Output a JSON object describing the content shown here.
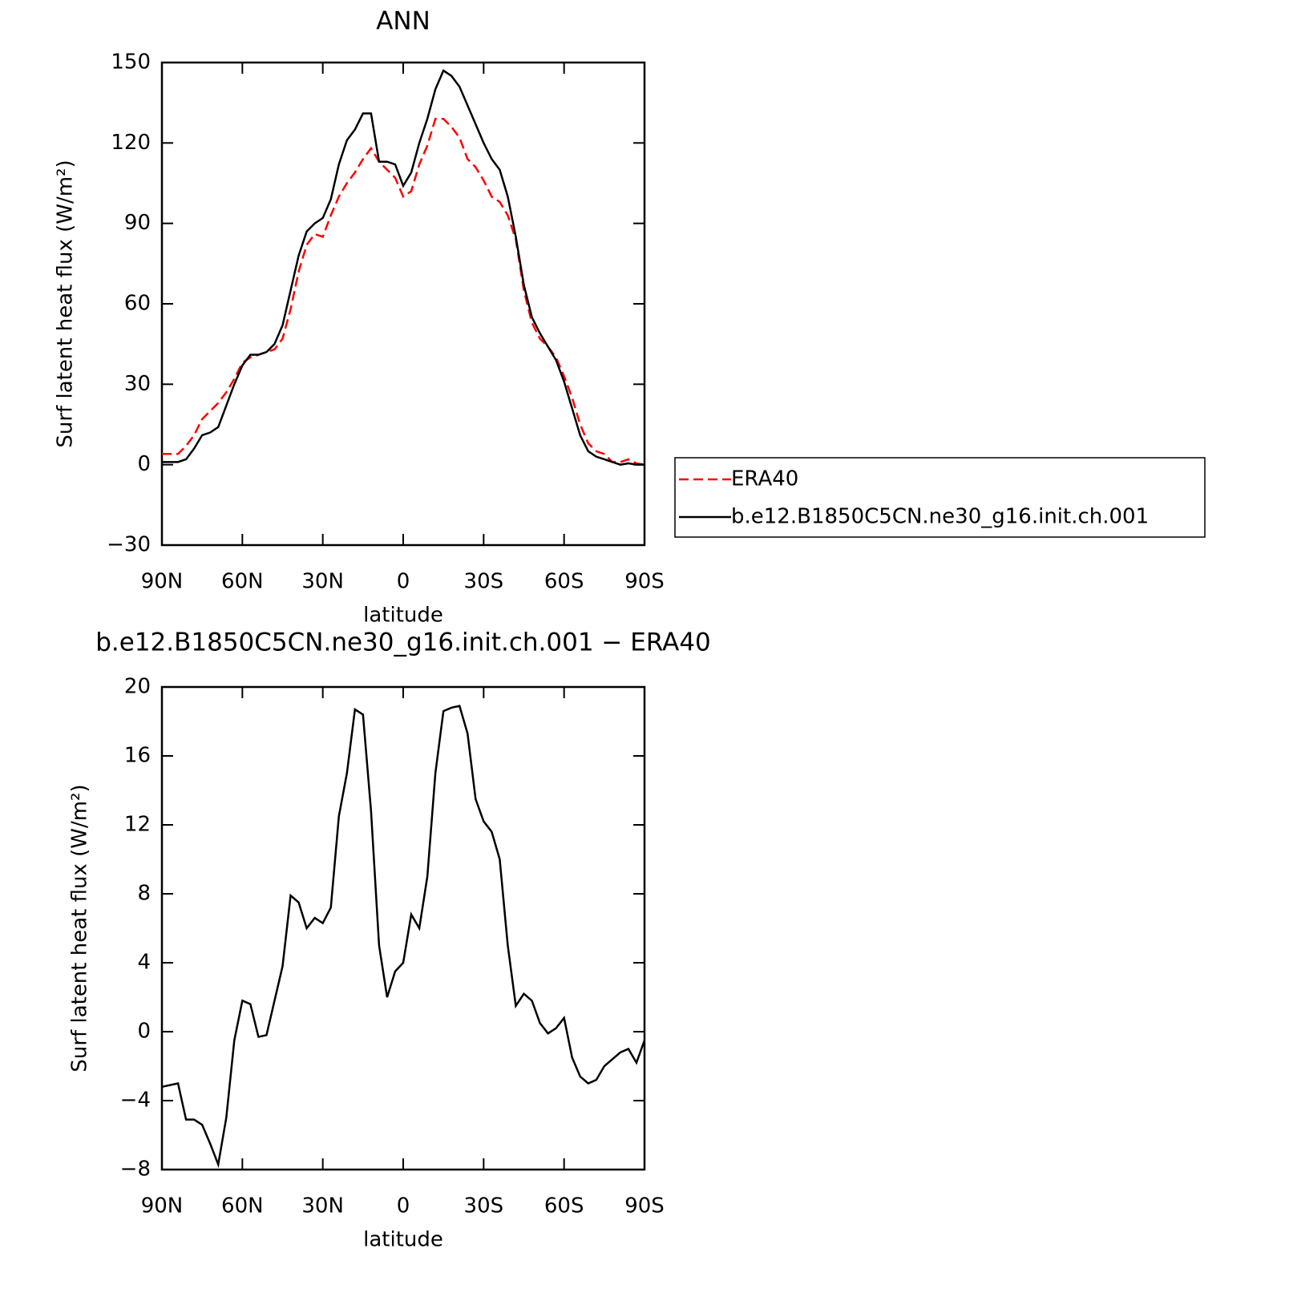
{
  "chart_data": [
    {
      "type": "line",
      "title": "ANN",
      "x_label": "latitude",
      "y_label": "Surf latent heat flux (W/m²)",
      "x": [
        90,
        87,
        84,
        81,
        78,
        75,
        72,
        69,
        66,
        63,
        60,
        57,
        54,
        51,
        48,
        45,
        42,
        39,
        36,
        33,
        30,
        27,
        24,
        21,
        18,
        15,
        12,
        9,
        6,
        3,
        0,
        -3,
        -6,
        -9,
        -12,
        -15,
        -18,
        -21,
        -24,
        -27,
        -30,
        -33,
        -36,
        -39,
        -42,
        -45,
        -48,
        -51,
        -54,
        -57,
        -60,
        -63,
        -66,
        -69,
        -72,
        -75,
        -78,
        -81,
        -84,
        -87,
        -90
      ],
      "series": [
        {
          "name": "ERA40",
          "color": "#ff0000",
          "style": "dashed",
          "values": [
            4,
            4,
            4,
            7,
            11,
            17,
            20,
            23,
            27,
            32,
            38,
            40,
            41,
            42,
            43,
            47,
            58,
            72,
            82,
            86,
            85,
            93,
            100,
            105,
            109,
            114,
            118,
            113,
            110,
            107,
            100,
            102,
            112,
            119,
            129,
            129,
            126,
            122,
            114,
            111,
            106,
            100,
            98,
            93,
            84,
            65,
            53,
            47,
            44,
            40,
            33,
            25,
            15,
            8,
            5,
            4,
            1,
            1,
            2,
            0.5,
            0
          ]
        },
        {
          "name": "b.e12.B1850C5CN.ne30_g16.init.ch.001",
          "color": "#000000",
          "style": "solid",
          "values": [
            1,
            1,
            1,
            2,
            6,
            11,
            12,
            14,
            22,
            30,
            37,
            41,
            41,
            42,
            45,
            52,
            65,
            78,
            87,
            90,
            92,
            99,
            112,
            121,
            125,
            131,
            131,
            113,
            113,
            112,
            104,
            109,
            120,
            129,
            140,
            147,
            145,
            141,
            134,
            127,
            120,
            114,
            110,
            100,
            85,
            67,
            55,
            49,
            44,
            39,
            31,
            21,
            11,
            5,
            3,
            2,
            1,
            0,
            0.5,
            0,
            0
          ]
        }
      ],
      "xlim": [
        90,
        -90
      ],
      "ylim": [
        -30,
        150
      ],
      "xticks": [
        {
          "value": 90,
          "label": "90N"
        },
        {
          "value": 60,
          "label": "60N"
        },
        {
          "value": 30,
          "label": "30N"
        },
        0,
        {
          "value": -30,
          "label": "30S"
        },
        {
          "value": -60,
          "label": "60S"
        },
        {
          "value": -90,
          "label": "90S"
        }
      ],
      "yticks": [
        {
          "value": -30,
          "label": "−30"
        },
        0,
        30,
        60,
        90,
        120,
        150
      ],
      "legend": "right"
    },
    {
      "type": "line",
      "title": "b.e12.B1850C5CN.ne30_g16.init.ch.001 − ERA40",
      "x_label": "latitude",
      "y_label": "Surf latent heat flux (W/m²)",
      "x": [
        90,
        87,
        84,
        81,
        78,
        75,
        72,
        69,
        66,
        63,
        60,
        57,
        54,
        51,
        48,
        45,
        42,
        39,
        36,
        33,
        30,
        27,
        24,
        21,
        18,
        15,
        12,
        9,
        6,
        3,
        0,
        -3,
        -6,
        -9,
        -12,
        -15,
        -18,
        -21,
        -24,
        -27,
        -30,
        -33,
        -36,
        -39,
        -42,
        -45,
        -48,
        -51,
        -54,
        -57,
        -60,
        -63,
        -66,
        -69,
        -72,
        -75,
        -78,
        -81,
        -84,
        -87,
        -90
      ],
      "series": [
        {
          "color": "#000000",
          "style": "solid",
          "values": [
            -3.2,
            -3.1,
            -3.0,
            -5.1,
            -5.1,
            -5.4,
            -6.5,
            -7.7,
            -5.0,
            -0.5,
            1.8,
            1.6,
            -0.3,
            -0.2,
            1.8,
            3.8,
            7.9,
            7.5,
            6.0,
            6.6,
            6.3,
            7.2,
            12.5,
            15,
            18.7,
            18.4,
            12.8,
            5.0,
            2.0,
            3.5,
            4.0,
            6.8,
            6.0,
            9,
            15,
            18.6,
            18.8,
            18.9,
            17.3,
            13.5,
            12.2,
            11.6,
            10,
            5,
            1.5,
            2.2,
            1.8,
            0.5,
            -0.1,
            0.2,
            0.8,
            -1.5,
            -2.6,
            -3.0,
            -2.8,
            -2.0,
            -1.6,
            -1.2,
            -1.0,
            -1.8,
            -0.5
          ]
        }
      ],
      "xlim": [
        90,
        -90
      ],
      "ylim": [
        -8,
        20
      ],
      "xticks": [
        {
          "value": 90,
          "label": "90N"
        },
        {
          "value": 60,
          "label": "60N"
        },
        {
          "value": 30,
          "label": "30N"
        },
        0,
        {
          "value": -30,
          "label": "30S"
        },
        {
          "value": -60,
          "label": "60S"
        },
        {
          "value": -90,
          "label": "90S"
        }
      ],
      "yticks": [
        {
          "value": -8,
          "label": "−8"
        },
        {
          "value": -4,
          "label": "−4"
        },
        0,
        4,
        8,
        12,
        16,
        20
      ]
    }
  ]
}
